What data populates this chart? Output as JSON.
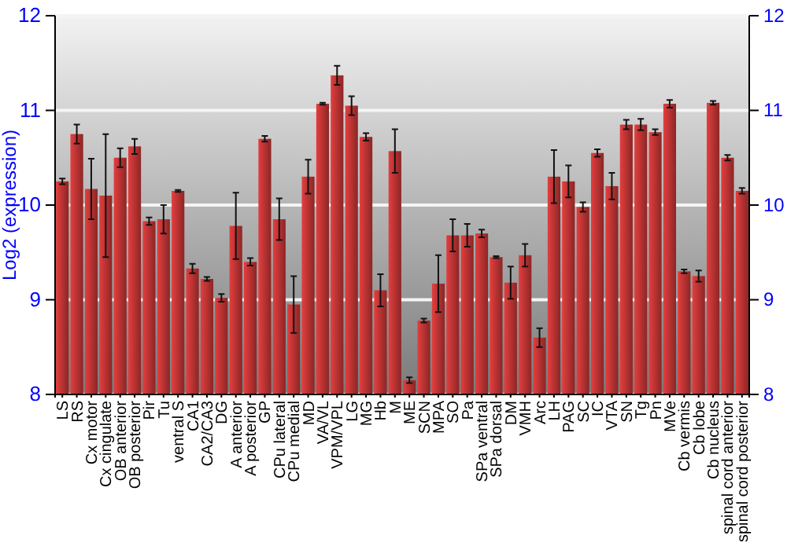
{
  "chart_data": {
    "type": "bar",
    "ylabel": "Log2 (expression)",
    "categories": [
      "LS",
      "RS",
      "Cx motor",
      "Cx cingulate",
      "OB anterior",
      "OB posterior",
      "Pir",
      "Tu",
      "ventral S",
      "CA1",
      "CA2/CA3",
      "DG",
      "A anterior",
      "A posterior",
      "GP",
      "CPu lateral",
      "CPu medial",
      "MD",
      "VA/VL",
      "VPM/VPL",
      "LG",
      "MG",
      "Hb",
      "M",
      "ME",
      "SCN",
      "MPA",
      "SO",
      "Pa",
      "SPa ventral",
      "SPa dorsal",
      "DM",
      "VMH",
      "Arc",
      "LH",
      "PAG",
      "SC",
      "IC",
      "VTA",
      "SN",
      "Tg",
      "Pn",
      "MVe",
      "Cb vermis",
      "Cb lobe",
      "Cb nucleus",
      "spinal cord anterior",
      "spinal cord posterior"
    ],
    "values": [
      10.25,
      10.75,
      10.17,
      10.1,
      10.5,
      10.62,
      9.83,
      9.85,
      10.15,
      9.33,
      9.22,
      9.02,
      9.78,
      9.4,
      10.7,
      9.85,
      8.95,
      10.3,
      11.07,
      11.37,
      11.05,
      10.72,
      9.1,
      10.57,
      8.15,
      8.78,
      9.17,
      9.68,
      9.68,
      9.7,
      9.45,
      9.18,
      9.47,
      8.6,
      10.3,
      10.25,
      9.98,
      10.55,
      10.2,
      10.85,
      10.85,
      10.77,
      11.07,
      9.3,
      9.25,
      11.08,
      10.5,
      10.15
    ],
    "errors": [
      0.03,
      0.1,
      0.32,
      0.65,
      0.1,
      0.08,
      0.04,
      0.15,
      0.01,
      0.05,
      0.02,
      0.04,
      0.35,
      0.04,
      0.03,
      0.22,
      0.3,
      0.18,
      0.01,
      0.1,
      0.1,
      0.04,
      0.17,
      0.23,
      0.03,
      0.02,
      0.3,
      0.17,
      0.12,
      0.04,
      0.01,
      0.17,
      0.12,
      0.1,
      0.28,
      0.17,
      0.05,
      0.04,
      0.14,
      0.05,
      0.06,
      0.03,
      0.04,
      0.02,
      0.06,
      0.02,
      0.03,
      0.03
    ],
    "color": "#b83232",
    "ylim": [
      8,
      12
    ],
    "yticks": [
      8,
      9,
      10,
      11,
      12
    ],
    "y2lim": [
      8,
      12
    ],
    "y2ticks": [
      8,
      9,
      10,
      11,
      12
    ],
    "grid": "y"
  }
}
